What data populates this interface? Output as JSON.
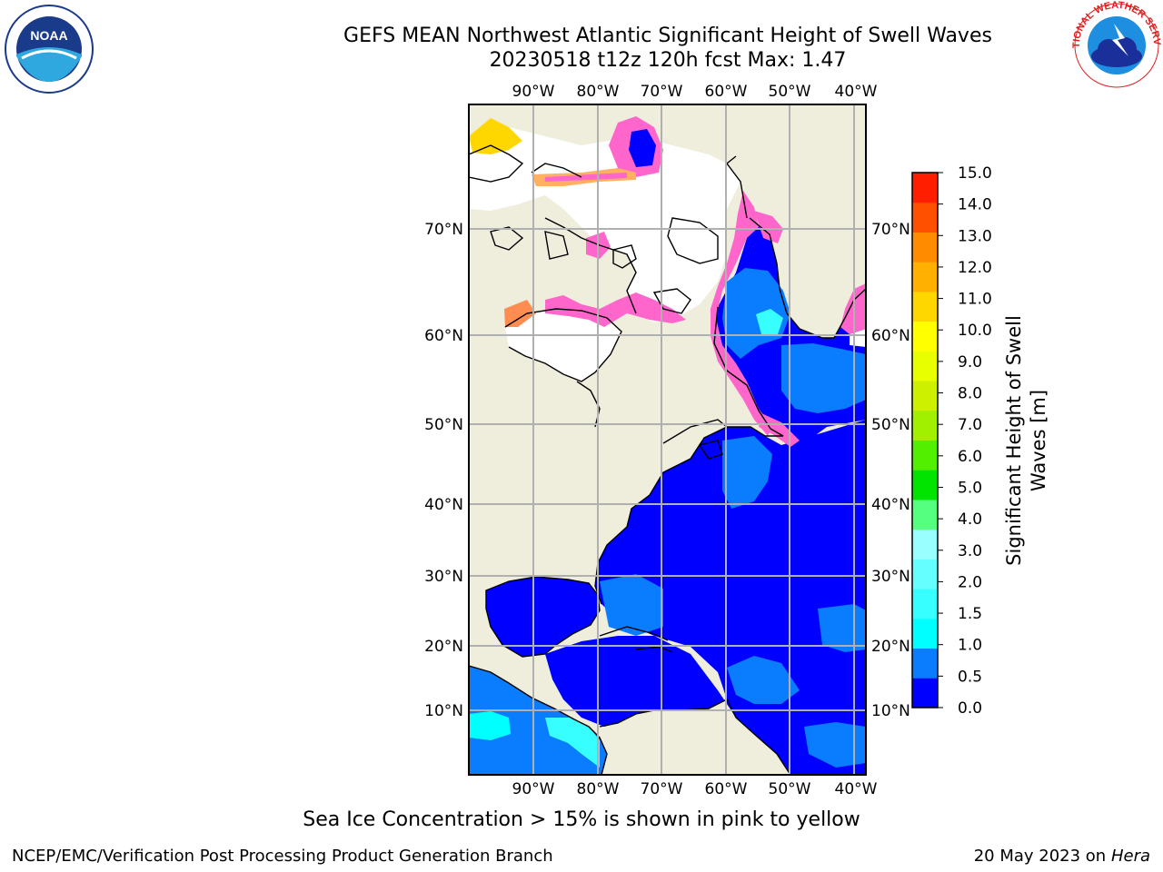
{
  "title_line1": "GEFS MEAN Northwest Atlantic Significant Height of Swell Waves",
  "title_line2": "20230518 t12z 120h fcst   Max: 1.47",
  "logos": {
    "left": "NOAA",
    "right": "NATIONAL WEATHER SERVICE"
  },
  "lon_labels": [
    "90°W",
    "80°W",
    "70°W",
    "60°W",
    "50°W",
    "40°W"
  ],
  "lat_labels": [
    "70°N",
    "60°N",
    "50°N",
    "40°N",
    "30°N",
    "20°N",
    "10°N"
  ],
  "colorbar": {
    "label": "Significant Height of Swell Waves [m]",
    "label_lines": [
      "Significant Height of Swell",
      "Waves [m]"
    ],
    "ticks": [
      "0.0",
      "0.5",
      "1.0",
      "1.5",
      "2.0",
      "3.0",
      "4.0",
      "5.0",
      "6.0",
      "7.0",
      "8.0",
      "9.0",
      "10.0",
      "11.0",
      "12.0",
      "13.0",
      "14.0",
      "15.0"
    ],
    "colors": [
      "#0000ff",
      "#0a7dff",
      "#00ffff",
      "#37ffff",
      "#66ffff",
      "#99ffff",
      "#55ff7f",
      "#00e400",
      "#52f000",
      "#a0f000",
      "#ccf000",
      "#e8ff00",
      "#ffff00",
      "#ffd700",
      "#ffb000",
      "#ff8c00",
      "#ff5000",
      "#ff1e00"
    ]
  },
  "footer_note": "Sea Ice Concentration > 15% is shown in pink to yellow",
  "credit": "NCEP/EMC/Verification Post Processing Product Generation Branch",
  "date": "20 May 2023 on",
  "host": "Hera"
}
